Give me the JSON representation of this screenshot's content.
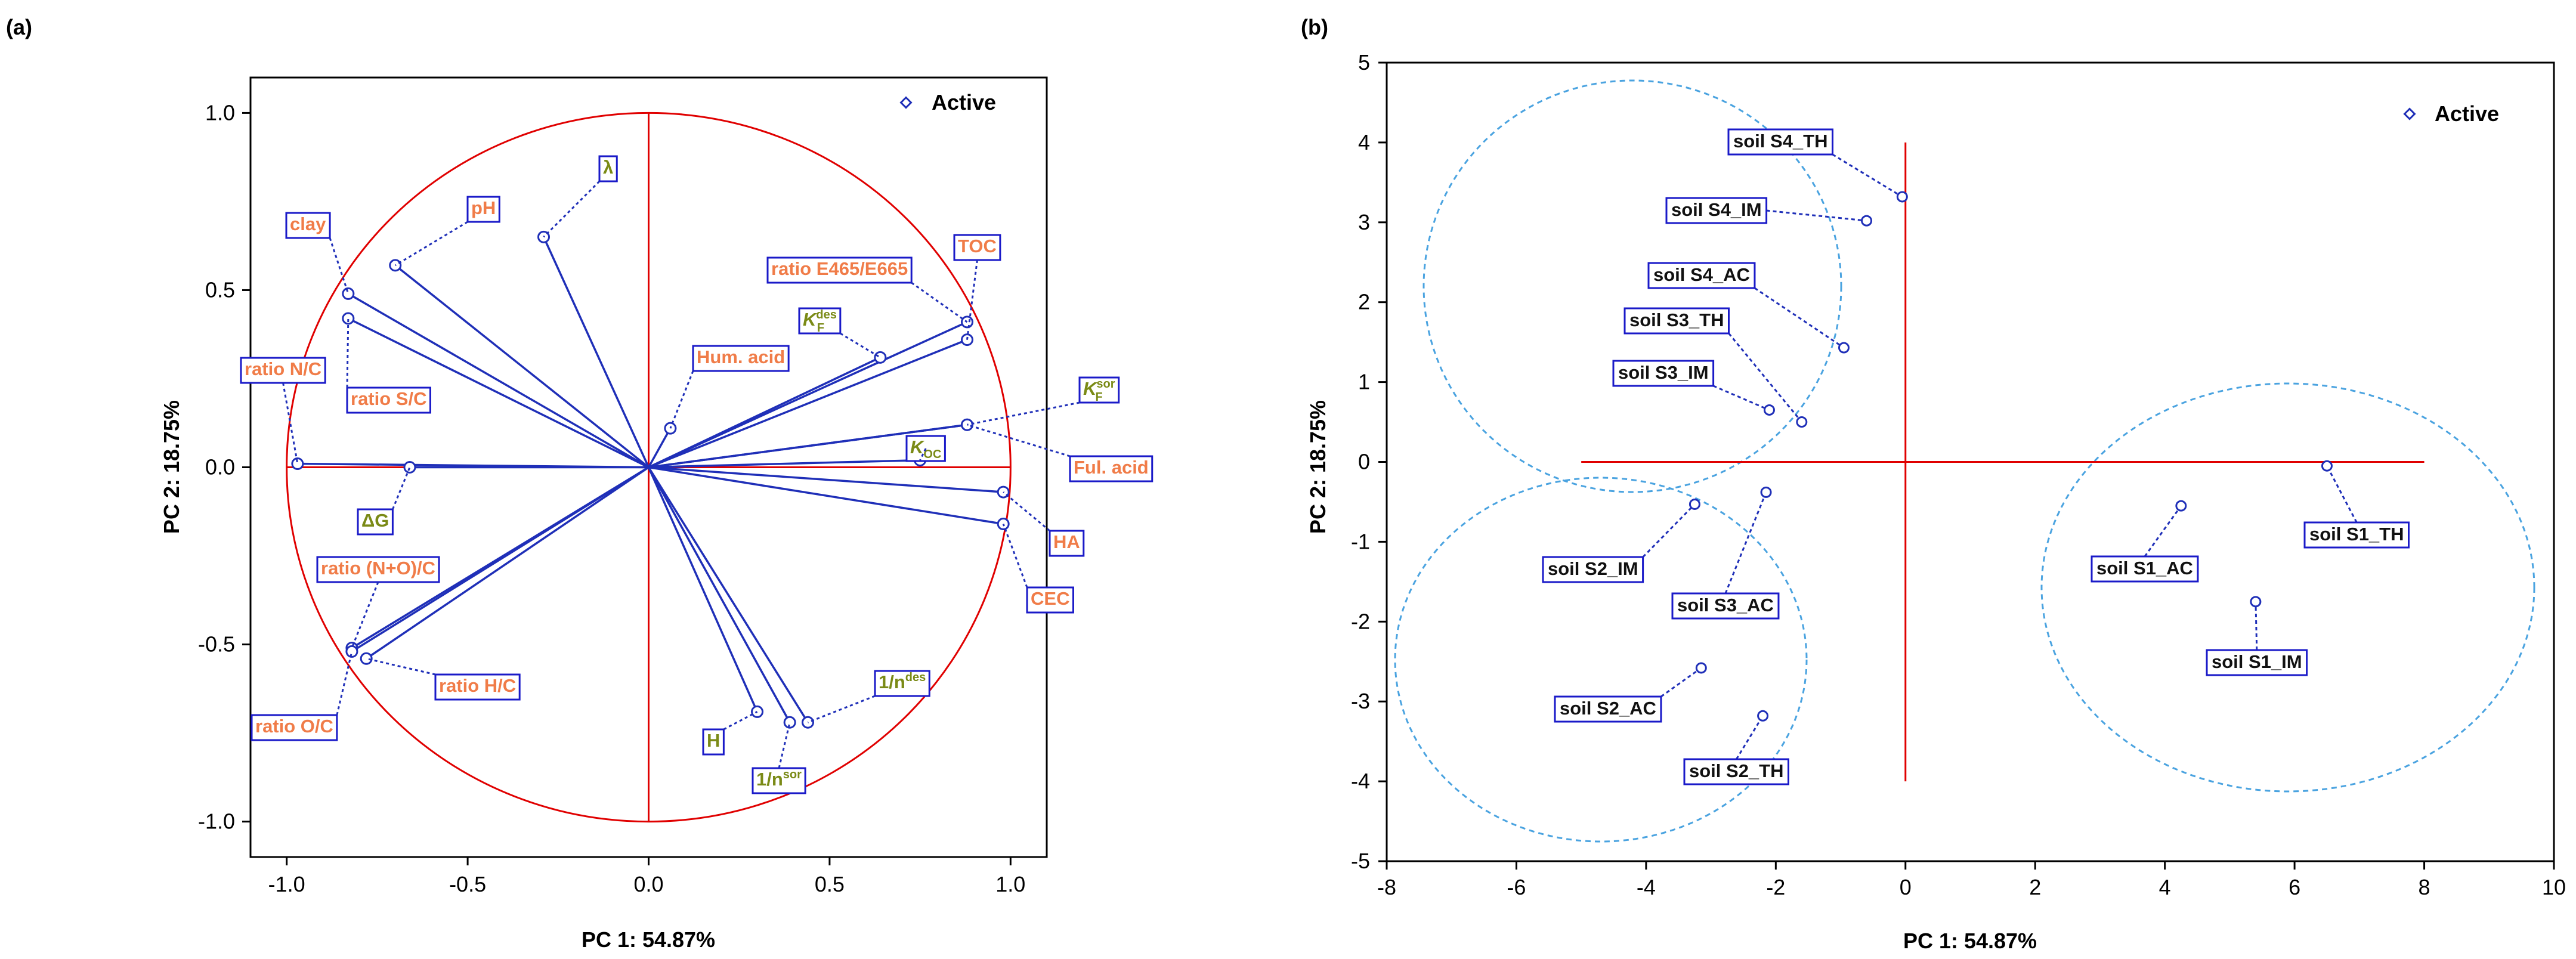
{
  "colors": {
    "axis_red": "#e00000",
    "vector_blue": "#1f2fb8",
    "label_border": "#1a1ac8",
    "label_orange": "#f07c48",
    "label_green": "#7a8a16",
    "cluster_blue": "#4aa3e0"
  },
  "chart_data": [
    {
      "panel": "(a)",
      "type": "scatter",
      "subtype": "pca-loading-plot",
      "xlabel": "PC 1: 54.87%",
      "ylabel": "PC 2: 18.75%",
      "xlim": [
        -1.1,
        1.1
      ],
      "ylim": [
        -1.1,
        1.1
      ],
      "xticks": [
        -1.0,
        -0.5,
        0.0,
        0.5,
        1.0
      ],
      "xtick_labels": [
        "-1.0",
        "-0.5",
        "0.0",
        "0.5",
        "1.0"
      ],
      "yticks": [
        1.0,
        0.5,
        0.0,
        -0.5,
        -1.0
      ],
      "ytick_labels": [
        "1.0",
        "0.5",
        "0.0",
        "-0.5",
        "-1.0"
      ],
      "legend": "Active",
      "legend_position": "top-right",
      "unit_circle": true,
      "points": [
        {
          "label": "clay",
          "x": -0.83,
          "y": 0.49,
          "color": "orange"
        },
        {
          "label": "pH",
          "x": -0.7,
          "y": 0.57,
          "color": "orange"
        },
        {
          "label": "λ",
          "x": -0.29,
          "y": 0.65,
          "color": "green"
        },
        {
          "label": "ratio N/C",
          "x": -0.97,
          "y": 0.01,
          "color": "orange"
        },
        {
          "label": "ratio S/C",
          "x": -0.83,
          "y": 0.42,
          "color": "orange"
        },
        {
          "label": "ΔG",
          "x": -0.66,
          "y": 0.0,
          "color": "green"
        },
        {
          "label": "Hum. acid",
          "x": 0.06,
          "y": 0.11,
          "color": "orange"
        },
        {
          "label": "ratio E465/E665",
          "x": 0.88,
          "y": 0.41,
          "color": "orange"
        },
        {
          "label": "TOC",
          "x": 0.88,
          "y": 0.36,
          "color": "orange"
        },
        {
          "label": "K_F^des",
          "x": 0.64,
          "y": 0.31,
          "color": "green"
        },
        {
          "label": "K_F^sor",
          "x": 0.88,
          "y": 0.12,
          "color": "green"
        },
        {
          "label": "Ful. acid",
          "x": 0.88,
          "y": 0.12,
          "color": "orange"
        },
        {
          "label": "K_OC",
          "x": 0.75,
          "y": 0.02,
          "color": "green"
        },
        {
          "label": "HA",
          "x": 0.98,
          "y": -0.07,
          "color": "orange"
        },
        {
          "label": "CEC",
          "x": 0.98,
          "y": -0.16,
          "color": "orange"
        },
        {
          "label": "ratio (N+O)/C",
          "x": -0.82,
          "y": -0.51,
          "color": "orange"
        },
        {
          "label": "ratio O/C",
          "x": -0.82,
          "y": -0.52,
          "color": "orange"
        },
        {
          "label": "ratio H/C",
          "x": -0.78,
          "y": -0.54,
          "color": "orange"
        },
        {
          "label": "H",
          "x": 0.3,
          "y": -0.69,
          "color": "green"
        },
        {
          "label": "1/n^sor",
          "x": 0.39,
          "y": -0.72,
          "color": "green"
        },
        {
          "label": "1/n^des",
          "x": 0.44,
          "y": -0.72,
          "color": "green"
        }
      ]
    },
    {
      "panel": "(b)",
      "type": "scatter",
      "subtype": "pca-score-plot",
      "xlabel": "PC 1: 54.87%",
      "ylabel": "PC 2: 18.75%",
      "xlim": [
        -8,
        10
      ],
      "ylim": [
        -5,
        5
      ],
      "xticks": [
        -8,
        -6,
        -4,
        -2,
        0,
        2,
        4,
        6,
        8,
        10
      ],
      "xtick_labels": [
        "-8",
        "-6",
        "-4",
        "-2",
        "0",
        "2",
        "4",
        "6",
        "8",
        "10"
      ],
      "yticks": [
        5,
        4,
        3,
        2,
        1,
        0,
        -1,
        -2,
        -3,
        -4,
        -5
      ],
      "ytick_labels": [
        "5",
        "4",
        "3",
        "2",
        "1",
        "0",
        "-1",
        "-2",
        "-3",
        "-4",
        "-5"
      ],
      "legend": "Active",
      "legend_position": "top-right",
      "crosshair": {
        "x": [
          -5,
          8
        ],
        "y": [
          -4,
          4
        ]
      },
      "points": [
        {
          "label": "soil S4_TH",
          "x": -0.05,
          "y": 3.32
        },
        {
          "label": "soil S4_IM",
          "x": -0.6,
          "y": 3.02
        },
        {
          "label": "soil S4_AC",
          "x": -0.95,
          "y": 1.43
        },
        {
          "label": "soil S3_TH",
          "x": -1.6,
          "y": 0.5
        },
        {
          "label": "soil S3_IM",
          "x": -2.1,
          "y": 0.65
        },
        {
          "label": "soil S2_IM",
          "x": -3.25,
          "y": -0.53
        },
        {
          "label": "soil S3_AC",
          "x": -2.15,
          "y": -0.38
        },
        {
          "label": "soil S2_AC",
          "x": -3.15,
          "y": -2.58
        },
        {
          "label": "soil S2_TH",
          "x": -2.2,
          "y": -3.18
        },
        {
          "label": "soil S1_TH",
          "x": 6.5,
          "y": -0.05
        },
        {
          "label": "soil S1_AC",
          "x": 4.25,
          "y": -0.55
        },
        {
          "label": "soil S1_IM",
          "x": 5.4,
          "y": -1.75
        }
      ],
      "clusters": [
        {
          "members": [
            "soil S4_TH",
            "soil S4_IM",
            "soil S4_AC",
            "soil S3_TH",
            "soil S3_IM"
          ]
        },
        {
          "members": [
            "soil S2_IM",
            "soil S3_AC",
            "soil S2_AC",
            "soil S2_TH"
          ]
        },
        {
          "members": [
            "soil S1_TH",
            "soil S1_AC",
            "soil S1_IM"
          ]
        }
      ]
    }
  ]
}
